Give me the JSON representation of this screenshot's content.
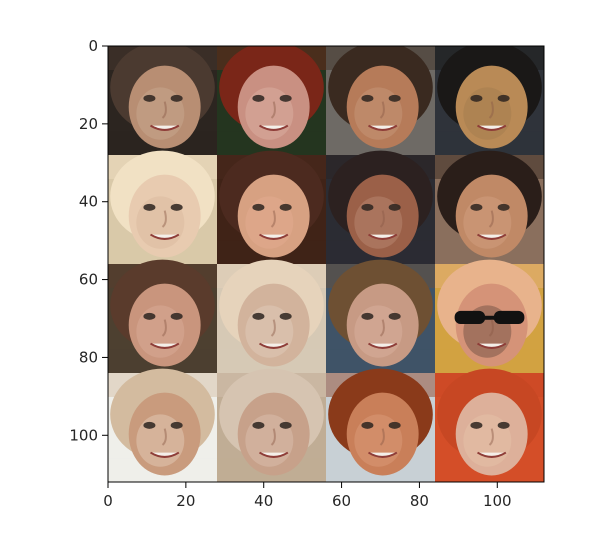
{
  "figure": {
    "title": "",
    "description_text": ""
  },
  "axes": {
    "x_ticks": [
      "0",
      "20",
      "40",
      "60",
      "80",
      "100"
    ],
    "y_ticks": [
      "0",
      "20",
      "40",
      "60",
      "80",
      "100"
    ],
    "x_range": [
      0,
      112
    ],
    "y_range": [
      0,
      112
    ]
  },
  "image_grid": {
    "rows": 4,
    "cols": 4,
    "tiles": [
      {
        "name": "face-r1c1",
        "bg": "#2c2520",
        "skin": "#b88e73",
        "hair": "#4b3a30",
        "accent": "#d6c3ad"
      },
      {
        "name": "face-r1c2",
        "bg": "#24351f",
        "skin": "#c99082",
        "hair": "#7a2618",
        "accent": "#f0d0c2"
      },
      {
        "name": "face-r1c3",
        "bg": "#6e6a65",
        "skin": "#b67b59",
        "hair": "#3a2a20",
        "accent": "#d9b49d"
      },
      {
        "name": "face-r1c4",
        "bg": "#2f333a",
        "skin": "#b98a56",
        "hair": "#1a1817",
        "accent": "#8e6f46"
      },
      {
        "name": "face-r2c1",
        "bg": "#d9c9a9",
        "skin": "#e8cbb0",
        "hair": "#f1e1c4",
        "accent": "#cba88b"
      },
      {
        "name": "face-r2c2",
        "bg": "#402317",
        "skin": "#d7a182",
        "hair": "#4c2a1f",
        "accent": "#f0b8a1"
      },
      {
        "name": "face-r2c3",
        "bg": "#2b2c33",
        "skin": "#9b6048",
        "hair": "#2c2120",
        "accent": "#d8b09a"
      },
      {
        "name": "face-r2c4",
        "bg": "#8a6f5d",
        "skin": "#c08966",
        "hair": "#2a1e19",
        "accent": "#e2b89b"
      },
      {
        "name": "face-r3c1",
        "bg": "#4d4030",
        "skin": "#c9957d",
        "hair": "#5a3b2c",
        "accent": "#eac4b2"
      },
      {
        "name": "face-r3c2",
        "bg": "#d6c9b5",
        "skin": "#d2b39c",
        "hair": "#e6d3bb",
        "accent": "#f0e4d7"
      },
      {
        "name": "face-r3c3",
        "bg": "#3f5367",
        "skin": "#c79a84",
        "hair": "#6e5033",
        "accent": "#eac7b6"
      },
      {
        "name": "face-r3c4",
        "bg": "#d2a241",
        "skin": "#d59378",
        "hair": "#e8b38c",
        "accent": "#111111"
      },
      {
        "name": "face-r4c1",
        "bg": "#efefea",
        "skin": "#c99b7d",
        "hair": "#d3bb9f",
        "accent": "#fffaf5"
      },
      {
        "name": "face-r4c2",
        "bg": "#c0ad95",
        "skin": "#c7a18a",
        "hair": "#d6c4b1",
        "accent": "#f1e0d4"
      },
      {
        "name": "face-r4c3",
        "bg": "#c8d0d5",
        "skin": "#c97f59",
        "hair": "#8a3a1a",
        "accent": "#efb89b"
      },
      {
        "name": "face-r4c4",
        "bg": "#d44e28",
        "skin": "#ddb09a",
        "hair": "#c74723",
        "accent": "#f1d2b8"
      }
    ]
  }
}
